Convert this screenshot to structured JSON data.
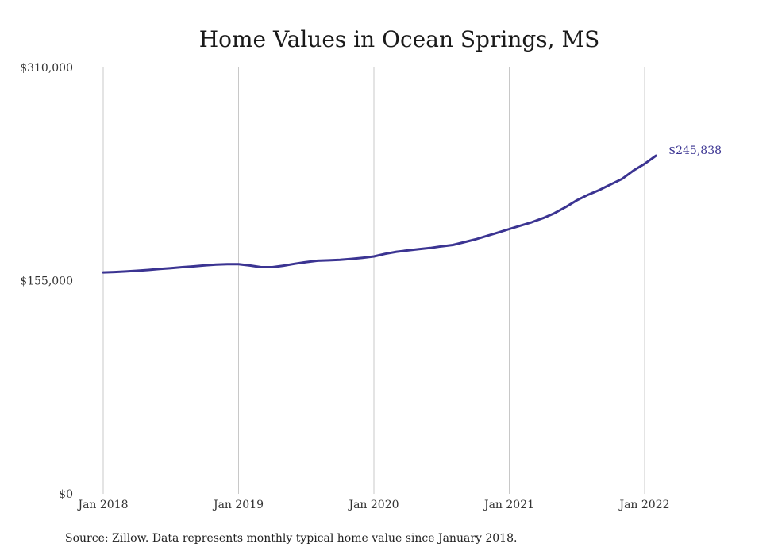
{
  "chart_data": {
    "type": "line",
    "title": "Home Values in Ocean Springs, MS",
    "ylim": [
      0,
      310000
    ],
    "y_ticks": [
      {
        "value": 0,
        "label": "$0"
      },
      {
        "value": 155000,
        "label": "$155,000"
      },
      {
        "value": 310000,
        "label": "$310,000"
      }
    ],
    "x_ticks": [
      {
        "value": 0,
        "label": "Jan 2018"
      },
      {
        "value": 12,
        "label": "Jan 2019"
      },
      {
        "value": 24,
        "label": "Jan 2020"
      },
      {
        "value": 36,
        "label": "Jan 2021"
      },
      {
        "value": 48,
        "label": "Jan 2022"
      }
    ],
    "xlim": [
      0,
      52
    ],
    "grid": "vertical",
    "line_color": "#3b3492",
    "series": [
      {
        "values": [
          161000,
          161300,
          161700,
          162200,
          162800,
          163500,
          164100,
          164800,
          165400,
          166100,
          166700,
          167000,
          167000,
          166000,
          164800,
          164800,
          165900,
          167300,
          168500,
          169500,
          169800,
          170200,
          170800,
          171600,
          172600,
          174500,
          176000,
          177000,
          178000,
          178800,
          180000,
          181000,
          183000,
          185000,
          187500,
          190000,
          192500,
          195000,
          197500,
          200500,
          204000,
          208500,
          213500,
          217500,
          221000,
          225000,
          229000,
          235000,
          240000,
          245838
        ]
      }
    ],
    "end_label": "$245,838",
    "source": "Source: Zillow. Data represents monthly typical home value since January 2018."
  }
}
